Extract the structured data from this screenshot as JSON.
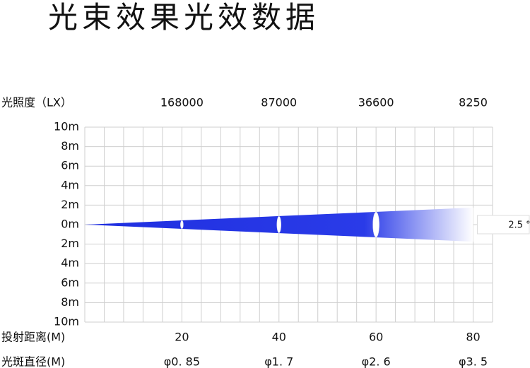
{
  "chart_data": {
    "type": "beam",
    "title": "光束效果光效数据",
    "lux_label": "光照度（LX）",
    "distance_label": "投射距离(M)",
    "diameter_label": "光斑直径(M)",
    "x": [
      20,
      40,
      60,
      80
    ],
    "lux": [
      168000,
      87000,
      36600,
      8250
    ],
    "diameters": [
      0.85,
      1.7,
      2.6,
      3.5
    ],
    "diameter_labels": [
      "φ0. 85",
      "φ1. 7",
      "φ2. 6",
      "φ3. 5"
    ],
    "beam_angle": 2.5,
    "beam_angle_label": "2.5 °",
    "color": "#1f2fe0",
    "xlim": [
      0,
      84
    ],
    "ylim": [
      -10,
      10
    ],
    "yticks": [
      {
        "value": 10,
        "label": "10m"
      },
      {
        "value": 8,
        "label": "8m"
      },
      {
        "value": 6,
        "label": "6m"
      },
      {
        "value": 4,
        "label": "4m"
      },
      {
        "value": 2,
        "label": "2m"
      },
      {
        "value": 0,
        "label": "0m"
      },
      {
        "value": -2,
        "label": "2m"
      },
      {
        "value": -4,
        "label": "4m"
      },
      {
        "value": -6,
        "label": "6m"
      },
      {
        "value": -8,
        "label": "8m"
      },
      {
        "value": -10,
        "label": "10m"
      }
    ],
    "grid": true
  }
}
